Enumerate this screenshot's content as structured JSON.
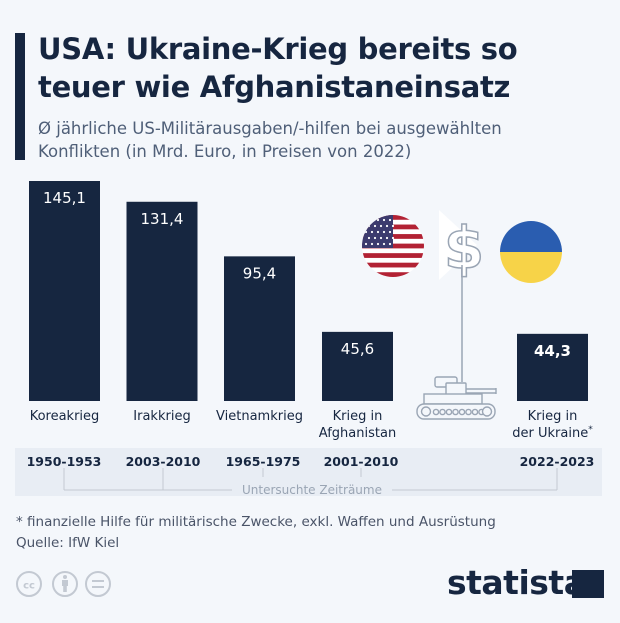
{
  "header": {
    "title_line1": "USA: Ukraine-Krieg bereits so",
    "title_line2": "teuer wie Afghanistaneinsatz",
    "subtitle_line1": "Ø jährliche US-Militärausgaben/-hilfen bei ausgewählten",
    "subtitle_line2": "Konflikten (in Mrd. Euro, in Preisen von 2022)"
  },
  "chart_data": {
    "type": "bar",
    "title": "USA: Ukraine-Krieg bereits so teuer wie Afghanistaneinsatz",
    "subtitle": "Ø jährliche US-Militärausgaben/-hilfen bei ausgewählten Konflikten (in Mrd. Euro, in Preisen von 2022)",
    "ylabel": "Mrd. Euro",
    "ylim": [
      0,
      145.1
    ],
    "grid": false,
    "categories": [
      {
        "label_line1": "Koreakrieg",
        "label_line2": "",
        "period": "1950-1953"
      },
      {
        "label_line1": "Irakkrieg",
        "label_line2": "",
        "period": "2003-2010"
      },
      {
        "label_line1": "Vietnamkrieg",
        "label_line2": "",
        "period": "1965-1975"
      },
      {
        "label_line1": "Krieg in",
        "label_line2": "Afghanistan",
        "period": "2001-2010"
      },
      {
        "label_line1": "Krieg in",
        "label_line2": "der Ukraine",
        "footnote_mark": "*",
        "period": "2022-2023"
      }
    ],
    "values": [
      145.1,
      131.4,
      95.4,
      45.6,
      44.3
    ],
    "value_labels": [
      "145,1",
      "131,4",
      "95,4",
      "45,6",
      "44,3"
    ],
    "highlight_index": 4,
    "timeline_label": "Untersuchte Zeiträume"
  },
  "illustration": {
    "icons": [
      "us-flag-icon",
      "dollar-sign-icon",
      "ukraine-flag-icon",
      "tank-icon"
    ]
  },
  "colors": {
    "bar": "#162640",
    "background": "#f4f7fb",
    "band": "#e8edf4",
    "us_red": "#b22234",
    "us_blue": "#3c3b6e",
    "ua_blue": "#2a5db0",
    "ua_yellow": "#f7d348",
    "icon_line": "#9aa5b4"
  },
  "footer": {
    "footnote": "* finanzielle Hilfe für militärische Zwecke, exkl. Waffen und Ausrüstung",
    "source": "Quelle: IfW Kiel",
    "license_icons": [
      "cc-icon",
      "by-icon",
      "nd-icon"
    ],
    "brand": "statista"
  }
}
